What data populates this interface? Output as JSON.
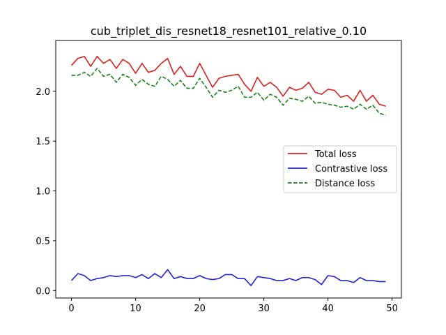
{
  "chart_data": {
    "type": "line",
    "title": "cub_triplet_dis_resnet18_resnet101_relative_0.10",
    "xlabel": "",
    "ylabel": "",
    "xlim": [
      -2.45,
      51.45
    ],
    "ylim": [
      -0.075,
      2.51
    ],
    "xticks": [
      0,
      10,
      20,
      30,
      40,
      50
    ],
    "xtick_labels": [
      "0",
      "10",
      "20",
      "30",
      "40",
      "50"
    ],
    "yticks": [
      0.0,
      0.5,
      1.0,
      1.5,
      2.0
    ],
    "ytick_labels": [
      "0.0",
      "0.5",
      "1.0",
      "1.5",
      "2.0"
    ],
    "grid": false,
    "legend_position": "center-right",
    "x": [
      0,
      1,
      2,
      3,
      4,
      5,
      6,
      7,
      8,
      9,
      10,
      11,
      12,
      13,
      14,
      15,
      16,
      17,
      18,
      19,
      20,
      21,
      22,
      23,
      24,
      25,
      26,
      27,
      28,
      29,
      30,
      31,
      32,
      33,
      34,
      35,
      36,
      37,
      38,
      39,
      40,
      41,
      42,
      43,
      44,
      45,
      46,
      47,
      48,
      49
    ],
    "series": [
      {
        "name": "Total loss",
        "color": "#d62020",
        "style": "solid",
        "values": [
          2.26,
          2.33,
          2.35,
          2.25,
          2.35,
          2.28,
          2.32,
          2.23,
          2.32,
          2.28,
          2.18,
          2.28,
          2.19,
          2.21,
          2.28,
          2.33,
          2.17,
          2.25,
          2.15,
          2.15,
          2.28,
          2.16,
          2.04,
          2.13,
          2.15,
          2.16,
          2.17,
          2.07,
          2.0,
          2.14,
          2.05,
          2.09,
          2.04,
          1.95,
          2.04,
          2.01,
          2.03,
          2.09,
          1.99,
          1.97,
          2.02,
          2.01,
          1.94,
          1.96,
          1.9,
          2.01,
          1.9,
          1.96,
          1.87,
          1.85
        ]
      },
      {
        "name": "Contrastive loss",
        "color": "#1f1fd6",
        "style": "solid",
        "values": [
          0.1,
          0.17,
          0.15,
          0.1,
          0.12,
          0.13,
          0.15,
          0.14,
          0.15,
          0.15,
          0.13,
          0.16,
          0.12,
          0.17,
          0.13,
          0.21,
          0.12,
          0.14,
          0.12,
          0.12,
          0.15,
          0.12,
          0.11,
          0.12,
          0.16,
          0.16,
          0.12,
          0.12,
          0.05,
          0.14,
          0.13,
          0.12,
          0.1,
          0.1,
          0.12,
          0.1,
          0.13,
          0.13,
          0.11,
          0.06,
          0.15,
          0.14,
          0.1,
          0.1,
          0.08,
          0.13,
          0.1,
          0.1,
          0.09,
          0.09
        ]
      },
      {
        "name": "Distance loss",
        "color": "#1a7f1a",
        "style": "dashed",
        "values": [
          2.16,
          2.16,
          2.19,
          2.15,
          2.23,
          2.15,
          2.17,
          2.09,
          2.17,
          2.14,
          2.06,
          2.12,
          2.07,
          2.05,
          2.15,
          2.12,
          2.05,
          2.11,
          2.03,
          2.03,
          2.13,
          2.04,
          1.94,
          2.01,
          1.99,
          2.01,
          2.05,
          1.94,
          1.94,
          1.99,
          1.91,
          1.97,
          1.94,
          1.86,
          1.93,
          1.92,
          1.9,
          1.95,
          1.88,
          1.89,
          1.87,
          1.86,
          1.84,
          1.85,
          1.82,
          1.87,
          1.82,
          1.86,
          1.78,
          1.76
        ]
      }
    ]
  }
}
